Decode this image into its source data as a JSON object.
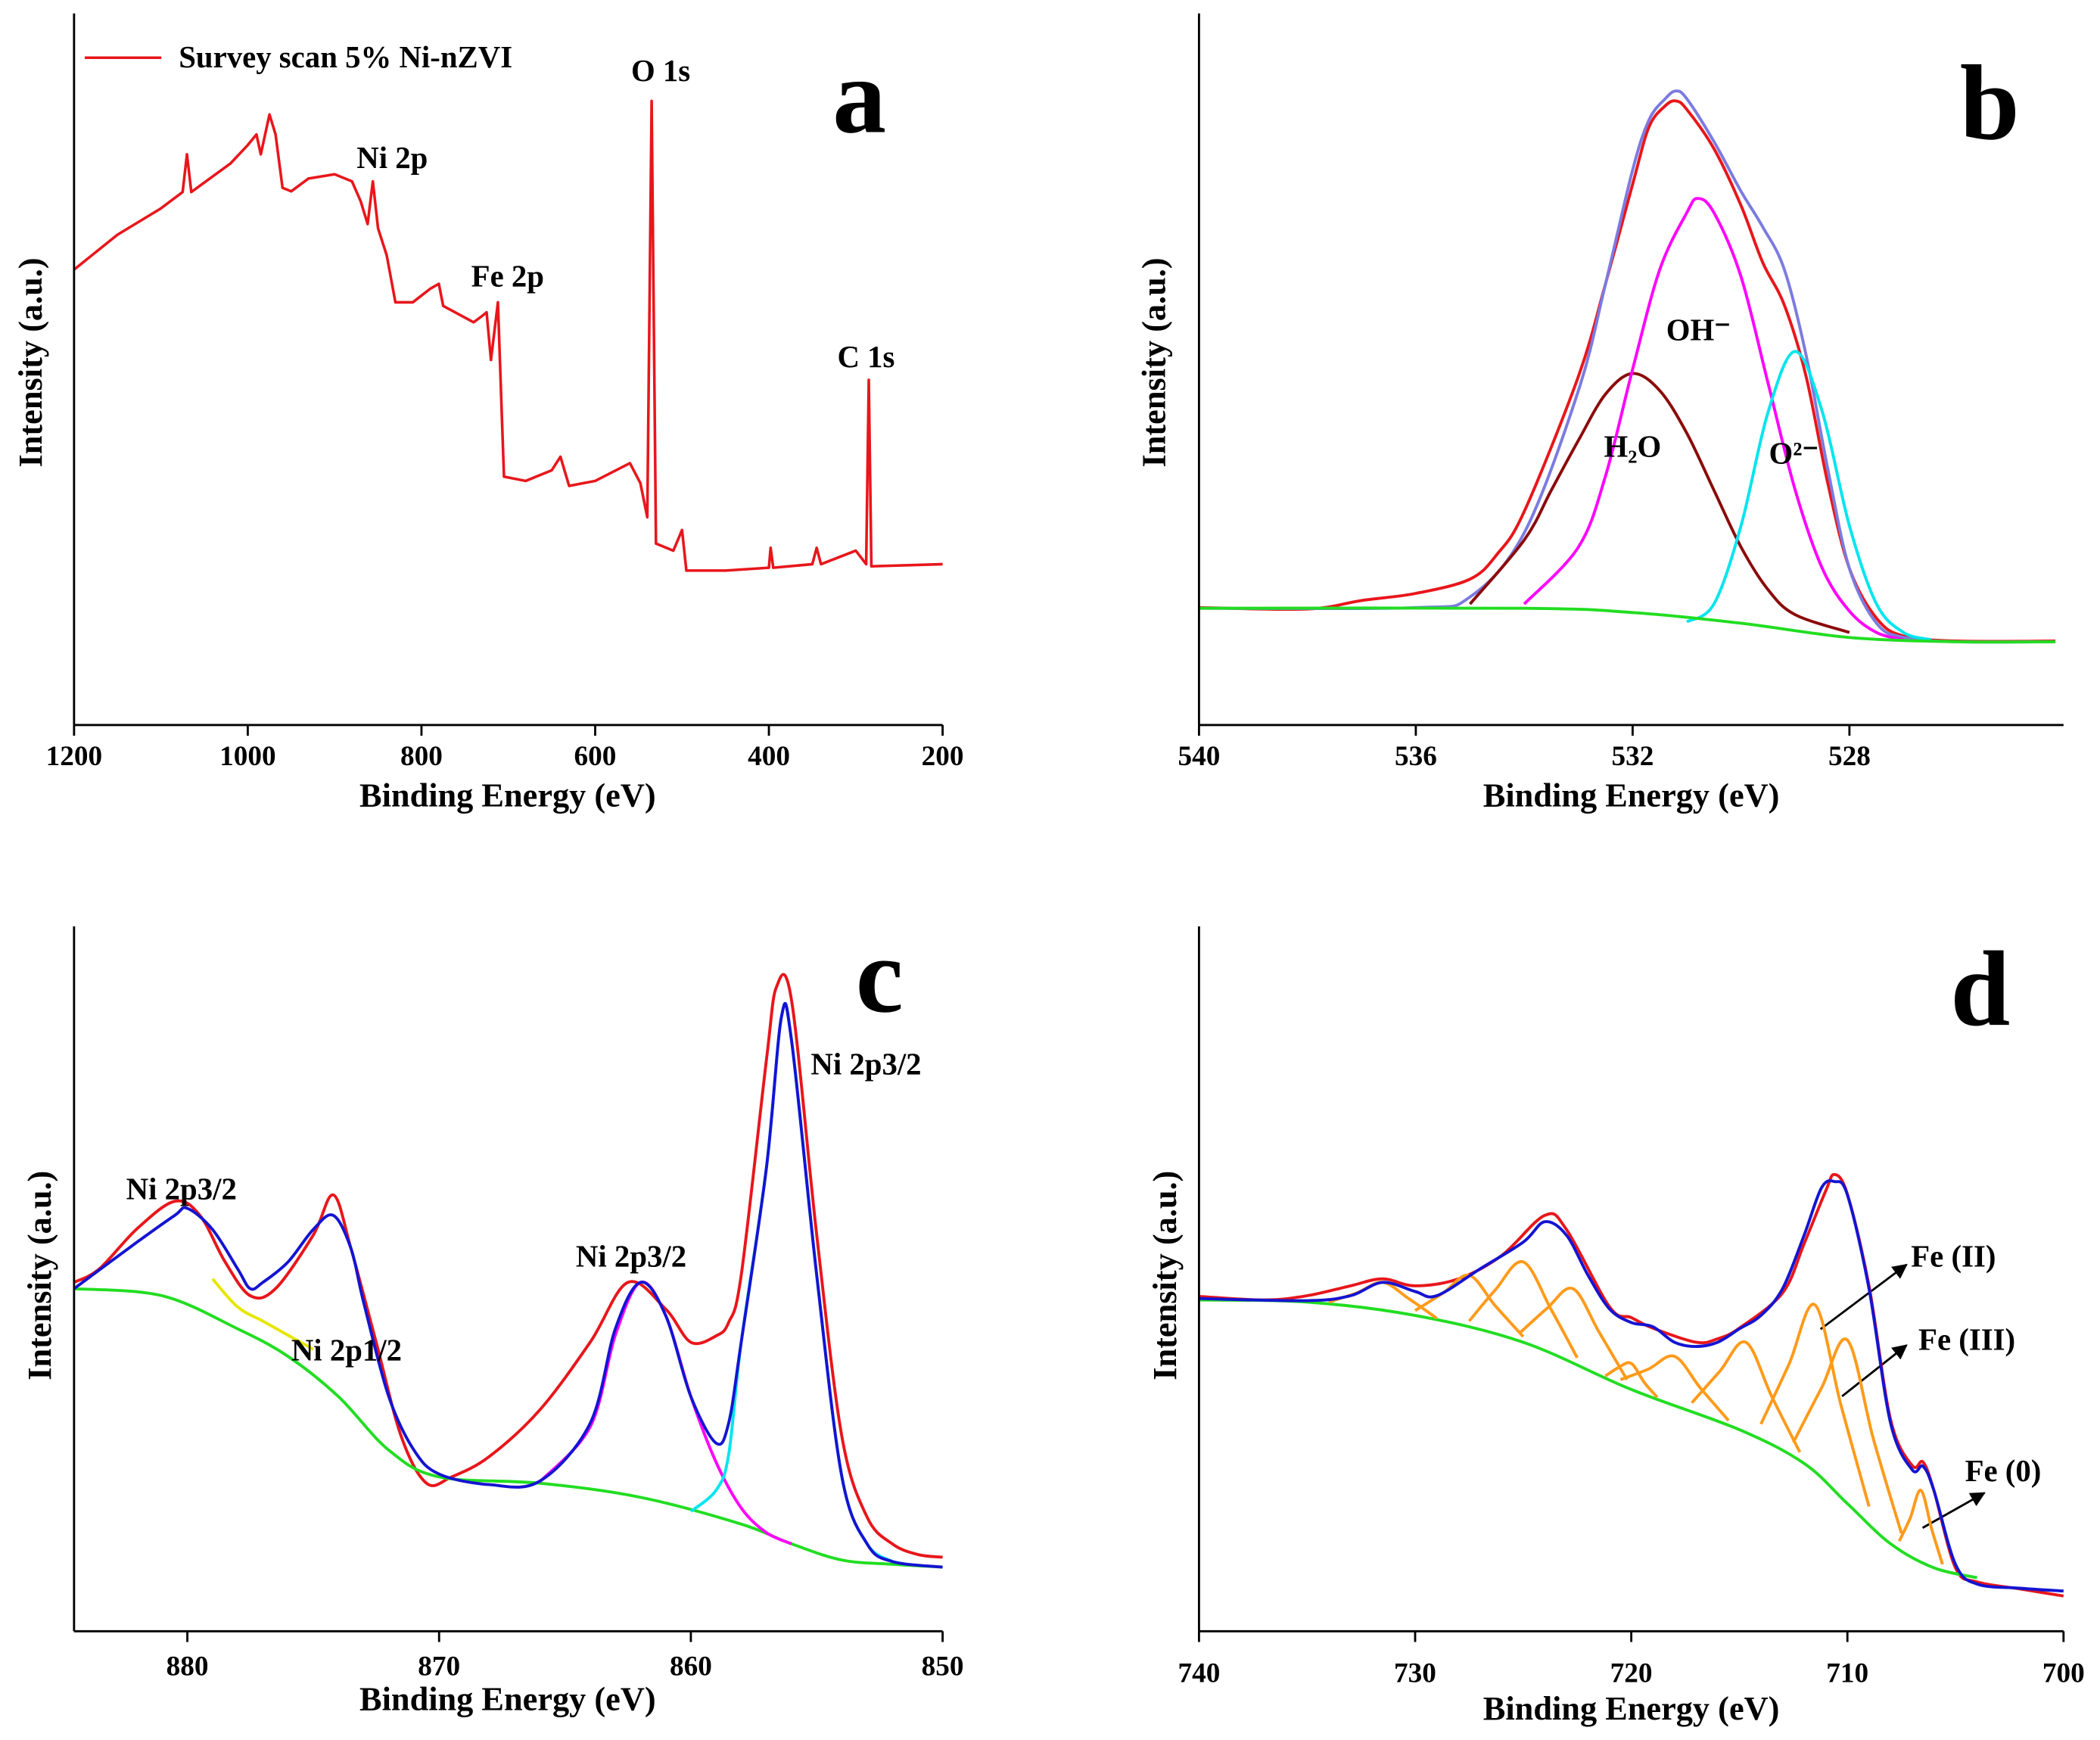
{
  "chart_data": [
    {
      "type": "line",
      "panel_label": "a",
      "xlabel": "Binding Energy (eV)",
      "ylabel": "Intensity (a.u.)",
      "xlim": [
        1200,
        200
      ],
      "ylim": [
        0,
        100
      ],
      "xticks": [
        1200,
        1000,
        800,
        600,
        400,
        200
      ],
      "annotations": [
        "O 1s",
        "Ni 2p",
        "Fe 2p",
        "C 1s"
      ],
      "series": [
        {
          "name": "Survey scan 5% Ni-nZVI",
          "color": "#e8161b",
          "x": [
            1200,
            1150,
            1100,
            1075,
            1070,
            1065,
            1020,
            1000,
            990,
            985,
            975,
            968,
            960,
            950,
            930,
            900,
            880,
            870,
            862,
            856,
            850,
            840,
            830,
            810,
            790,
            780,
            775,
            740,
            730,
            725,
            720,
            712,
            708,
            705,
            680,
            650,
            640,
            630,
            600,
            560,
            548,
            540,
            535,
            530,
            510,
            500,
            495,
            450,
            400,
            398,
            395,
            350,
            345,
            340,
            300,
            288,
            285,
            282,
            200
          ],
          "values": [
            64.0,
            68.9,
            72.6,
            74.9,
            80.2,
            74.9,
            78.9,
            81.5,
            83.0,
            80.2,
            85.8,
            83.0,
            75.5,
            75.0,
            76.8,
            77.4,
            76.4,
            73.6,
            70.4,
            76.4,
            69.8,
            66.0,
            59.4,
            59.4,
            61.3,
            62.0,
            58.9,
            56.6,
            57.5,
            58.0,
            51.3,
            59.4,
            45.3,
            34.9,
            34.3,
            35.8,
            37.7,
            33.6,
            34.3,
            36.8,
            34.0,
            29.2,
            87.7,
            25.5,
            24.5,
            27.4,
            21.7,
            21.7,
            22.1,
            24.9,
            22.1,
            22.6,
            24.9,
            22.6,
            24.5,
            22.6,
            48.5,
            22.3,
            22.6
          ]
        }
      ]
    },
    {
      "type": "line",
      "panel_label": "b",
      "xlabel": "Binding Energy (eV)",
      "ylabel": "Intensity (a.u.)",
      "xlim": [
        540,
        524.05
      ],
      "ylim": [
        0,
        100
      ],
      "xticks": [
        540,
        536,
        532,
        528
      ],
      "annotations": [
        "OH⁻",
        "H₂O",
        "O²⁻"
      ],
      "series": [
        {
          "color": "#e8161b",
          "x": [
            540,
            538,
            537,
            536,
            535,
            534.5,
            534,
            533,
            532.5,
            532,
            531.7,
            531.4,
            531.2,
            531,
            530.5,
            530,
            529.6,
            529.2,
            528.8,
            528.4,
            528,
            527.5,
            527,
            526,
            524.2
          ],
          "values": [
            16.5,
            16.3,
            17.5,
            18.5,
            20.5,
            24,
            30,
            49,
            62,
            76,
            84,
            87,
            87.7,
            86.5,
            81,
            73,
            65,
            59,
            49,
            34,
            22,
            15,
            12.5,
            11.8,
            11.8
          ]
        },
        {
          "color": "#7b7be0",
          "x": [
            540,
            536,
            535,
            534,
            533,
            532.5,
            532,
            531.7,
            531.4,
            531.2,
            531,
            530.5,
            530,
            529.6,
            529.2,
            528.8,
            528.4,
            528,
            527.5,
            527,
            526,
            524.2
          ],
          "values": [
            16.4,
            16.5,
            18,
            27,
            47,
            62,
            78,
            85,
            88,
            89.1,
            88,
            82,
            75,
            70,
            64,
            52,
            36,
            22,
            14.3,
            12.3,
            11.7,
            11.7
          ]
        },
        {
          "color": "#8b0a0a",
          "x": [
            535,
            534,
            533.5,
            533,
            532.5,
            532,
            531.5,
            531,
            530.5,
            530,
            529.5,
            529,
            528
          ],
          "values": [
            17,
            26,
            33,
            40,
            46.5,
            49.4,
            47,
            41,
            33,
            25,
            19,
            15.5,
            13
          ]
        },
        {
          "color": "#ff00ff",
          "x": [
            534,
            533,
            532.5,
            532,
            531.5,
            531,
            530.8,
            530.5,
            530,
            529.5,
            529,
            528.5,
            528,
            527.5,
            527
          ],
          "values": [
            17,
            25,
            35,
            50,
            64,
            72,
            74,
            72,
            63,
            48,
            33,
            22,
            16,
            13,
            12
          ]
        },
        {
          "color": "#00e5ee",
          "x": [
            531,
            530.5,
            530,
            529.5,
            529,
            528.5,
            528,
            527.5,
            527,
            526.5
          ],
          "values": [
            14.5,
            17,
            28,
            44,
            52.5,
            44,
            28,
            17,
            13,
            12
          ]
        },
        {
          "color": "#22dd22",
          "x": [
            540,
            534,
            532,
            530,
            528,
            526,
            524.2
          ],
          "values": [
            16.4,
            16.4,
            15.8,
            14.3,
            12.3,
            11.7,
            11.7
          ]
        }
      ]
    },
    {
      "type": "line",
      "panel_label": "c",
      "xlabel": "Binding Energy (eV)",
      "ylabel": "Intensity (a.u.)",
      "xlim": [
        884.5,
        850
      ],
      "ylim": [
        0,
        100
      ],
      "xticks": [
        880,
        870,
        860,
        850
      ],
      "annotations": [
        "Ni 2p3/2",
        "Ni 2p1/2",
        "Ni 2p3/2",
        "Ni 2p3/2"
      ],
      "series": [
        {
          "color": "#e8161b",
          "x": [
            884.5,
            883.5,
            882,
            880.5,
            879.5,
            878.5,
            877.5,
            876.5,
            875,
            874.2,
            873.5,
            872.5,
            871.5,
            870.5,
            869.5,
            868,
            866,
            864,
            862.5,
            861,
            860,
            859,
            858.5,
            858,
            857,
            856.6,
            856,
            855,
            854,
            853,
            852,
            851,
            850
          ],
          "values": [
            49.5,
            51.4,
            57.1,
            61,
            59,
            52.4,
            47.6,
            48.6,
            56.2,
            61.9,
            54.3,
            41,
            27.6,
            21,
            21.9,
            24.8,
            31.4,
            41,
            49.5,
            45.7,
            41,
            41.9,
            43.8,
            50.5,
            81,
            91.4,
            89.5,
            56.2,
            27.6,
            16.2,
            12.4,
            10.9,
            10.5
          ]
        },
        {
          "color": "#22dd22",
          "x": [
            884.5,
            881,
            878,
            876,
            874,
            872,
            870,
            866,
            862,
            858,
            856,
            854,
            852,
            850
          ],
          "values": [
            48.6,
            47.6,
            42.9,
            39,
            33.3,
            25.7,
            21.9,
            21,
            19,
            15.2,
            12.4,
            10.1,
            9.5,
            9.1
          ]
        },
        {
          "color": "#ff00ff",
          "x": [
            866,
            864,
            863,
            862,
            861,
            860,
            859,
            858,
            857,
            856
          ],
          "values": [
            21.2,
            29,
            42,
            49.5,
            44.8,
            33.3,
            24,
            17.5,
            14,
            12.4
          ]
        },
        {
          "color": "#00e5ee",
          "x": [
            860,
            859,
            858.5,
            858,
            857,
            856.4,
            856,
            855,
            854,
            853,
            852
          ],
          "values": [
            17,
            20,
            25,
            41,
            65.7,
            87.2,
            83.8,
            50.5,
            21.9,
            12.4,
            9.9
          ]
        },
        {
          "color": "#e6e600",
          "x": [
            879,
            878,
            877,
            876,
            875
          ],
          "values": [
            50,
            46,
            44,
            42,
            40
          ]
        },
        {
          "color": "#1414d2",
          "x": [
            884.5,
            882,
            880.5,
            880,
            879,
            878,
            877.5,
            877,
            876,
            875,
            874.2,
            873.5,
            873,
            872,
            871,
            870,
            868,
            866,
            864,
            863,
            862,
            861,
            860,
            859,
            858.5,
            858,
            857,
            856.4,
            856,
            855,
            854,
            853,
            852,
            850
          ],
          "values": [
            48.6,
            55.2,
            59,
            60,
            57,
            51.4,
            48.6,
            49.5,
            52.4,
            57,
            59,
            54.3,
            46.7,
            33.3,
            25.7,
            22.3,
            20.8,
            21.3,
            29.5,
            42.9,
            49.5,
            44.8,
            33.3,
            26.7,
            29.5,
            41,
            65.7,
            87.2,
            83.8,
            50.5,
            21.9,
            12.4,
            9.9,
            9.1
          ]
        }
      ]
    },
    {
      "type": "line",
      "panel_label": "d",
      "xlabel": "Binding Energy (eV)",
      "ylabel": "Intensity (a.u.)",
      "xlim": [
        740,
        700
      ],
      "ylim": [
        0,
        100
      ],
      "xticks": [
        740,
        730,
        720,
        710,
        700
      ],
      "annotations": [
        "Fe (II)",
        "Fe (III)",
        "Fe (0)"
      ],
      "series": [
        {
          "color": "#e8161b",
          "x": [
            740,
            737,
            735,
            733,
            731.5,
            730,
            728,
            726,
            724,
            723,
            721,
            720,
            719,
            717,
            716,
            715,
            713,
            712,
            711,
            710.6,
            710,
            709,
            708,
            707,
            706.5,
            706,
            705,
            704,
            702,
            700
          ],
          "values": [
            47.5,
            47,
            47.6,
            49,
            50,
            49,
            50,
            53.3,
            59,
            57,
            46,
            44.5,
            43,
            41,
            41.5,
            43,
            48,
            55,
            62.5,
            64.8,
            62,
            49,
            30,
            23.5,
            24,
            20,
            9,
            7,
            6,
            5
          ]
        },
        {
          "color": "#22dd22",
          "x": [
            740,
            735,
            730,
            725,
            720,
            715,
            712,
            710,
            708,
            706,
            704
          ],
          "values": [
            47,
            46.7,
            44.8,
            41,
            34.3,
            28.6,
            23.8,
            18.1,
            12.4,
            9,
            7.6
          ]
        },
        {
          "color": "#ff9a1a",
          "x": [
            734,
            732.7,
            731.5,
            730.3,
            729,
            null,
            730,
            728.7,
            727.5,
            726.3,
            725,
            null,
            727.5,
            726.3,
            725,
            723.7,
            722.5,
            null,
            725.2,
            723.9,
            722.7,
            721.5,
            720.2,
            null,
            721.2,
            720.6,
            720,
            719.4,
            718.8,
            null,
            720.5,
            719.2,
            718,
            716.8,
            715.5,
            null,
            717.2,
            715.9,
            714.7,
            713.5,
            712.2,
            null,
            714,
            712.7,
            711.5,
            710.3,
            709,
            null,
            712.5,
            711.2,
            710,
            708.8,
            707.5,
            null,
            707.6,
            707.1,
            706.6,
            706.1,
            705.6
          ],
          "values": [
            46.7,
            48,
            49.5,
            47.2,
            44.4,
            null,
            45.5,
            48,
            50.5,
            46.2,
            41.8,
            null,
            44,
            48.4,
            52.4,
            45.6,
            38.8,
            null,
            42.2,
            45.8,
            48.6,
            42.5,
            35.7,
            null,
            36.2,
            37.4,
            38,
            35.3,
            33.2,
            null,
            35.7,
            37.2,
            39,
            34.5,
            29.9,
            null,
            32.4,
            36.9,
            41,
            33.3,
            25.4,
            null,
            29.4,
            37.9,
            46.3,
            32.1,
            17.7,
            null,
            26.8,
            34.5,
            41.3,
            27.3,
            13.9,
            null,
            12.8,
            16,
            20,
            14.5,
            9.5
          ]
        },
        {
          "color": "#1414d2",
          "x": [
            740,
            735,
            733,
            731.5,
            730,
            729,
            727,
            725,
            724,
            723,
            722,
            721,
            720,
            719,
            718,
            717,
            716,
            715,
            714,
            713,
            712,
            711.2,
            710.6,
            710,
            709,
            708,
            707,
            706.5,
            706,
            705,
            704,
            702,
            700
          ],
          "values": [
            47.2,
            46.9,
            47.6,
            49.5,
            48.2,
            47.6,
            51.4,
            55.2,
            58.1,
            56.2,
            50.5,
            45.7,
            43.8,
            43.2,
            41,
            40.4,
            41,
            42.9,
            44.8,
            48.6,
            56.2,
            62.9,
            63.8,
            61.9,
            48.6,
            29.5,
            22.9,
            23.4,
            20,
            9.5,
            6.7,
            6.1,
            5.7
          ]
        }
      ]
    }
  ]
}
